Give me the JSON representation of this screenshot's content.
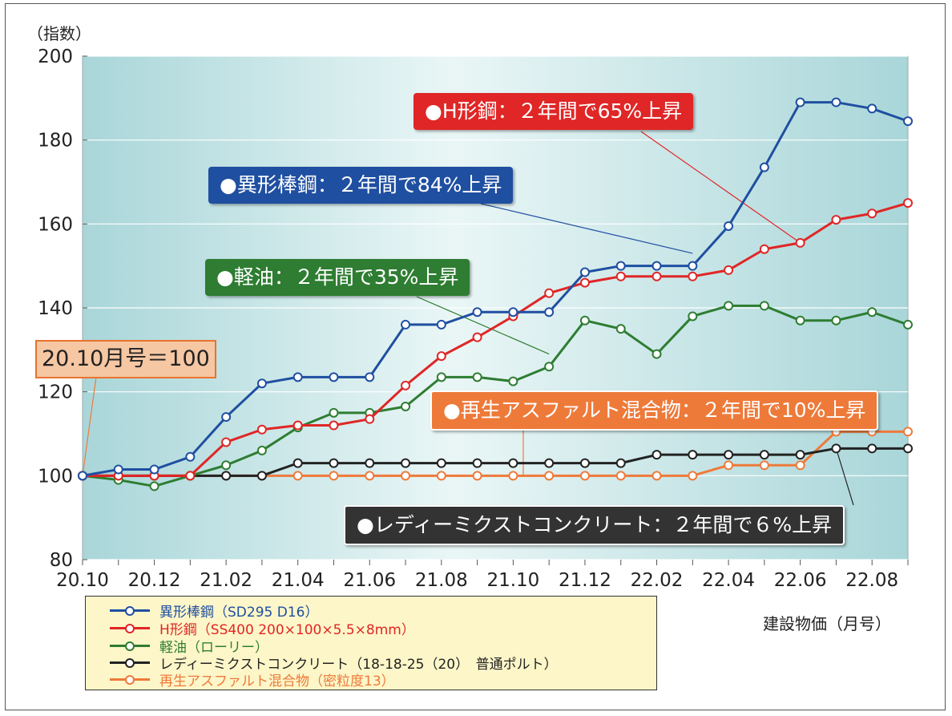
{
  "y_unit_label": "（指数）",
  "x_unit_label": "建設物価（月号）",
  "base_note": "20.10月号＝100",
  "colors": {
    "rebar": "#1f4fa1",
    "hbeam": "#e02626",
    "diesel": "#2e7d32",
    "concrete": "#222222",
    "asphalt": "#ee7a3a"
  },
  "callouts": {
    "hbeam": "●H形鋼：２年間で65%上昇",
    "rebar": "●異形棒鋼：２年間で84%上昇",
    "diesel": "●軽油：２年間で35%上昇",
    "asphalt": "●再生アスファルト混合物：２年間で10%上昇",
    "concrete": "●レディーミクストコンクリート：２年間で６%上昇"
  },
  "legend": [
    {
      "key": "rebar",
      "label": "異形棒鋼（SD295 D16）"
    },
    {
      "key": "hbeam",
      "label": "H形鋼（SS400 200×100×5.5×8mm）"
    },
    {
      "key": "diesel",
      "label": "軽油（ローリー）"
    },
    {
      "key": "concrete",
      "label": "レディーミクストコンクリート（18-18-25（20）　普通ポルト）"
    },
    {
      "key": "asphalt",
      "label": "再生アスファルト混合物（密粒度13）"
    }
  ],
  "chart_data": {
    "type": "line",
    "x": [
      "20.10",
      "20.11",
      "20.12",
      "21.01",
      "21.02",
      "21.03",
      "21.04",
      "21.05",
      "21.06",
      "21.07",
      "21.08",
      "21.09",
      "21.10",
      "21.11",
      "21.12",
      "22.01",
      "22.02",
      "22.03",
      "22.04",
      "22.05",
      "22.06",
      "22.07",
      "22.08",
      "22.09"
    ],
    "x_tick_labels": [
      "20.10",
      "20.12",
      "21.02",
      "21.04",
      "21.06",
      "21.08",
      "21.10",
      "21.12",
      "22.02",
      "22.04",
      "22.06",
      "22.08"
    ],
    "y_ticks": [
      80,
      100,
      120,
      140,
      160,
      180,
      200
    ],
    "ylim": [
      80,
      200
    ],
    "grid": true,
    "legend_position": "bottom-left",
    "series": [
      {
        "key": "rebar",
        "name": "異形棒鋼（SD295 D16）",
        "values": [
          100,
          101.5,
          101.5,
          104.5,
          114,
          122,
          123.5,
          123.5,
          123.5,
          136,
          136,
          139,
          139,
          139,
          148.5,
          150,
          150,
          150,
          159.5,
          173.5,
          189,
          189,
          187.5,
          184.5
        ]
      },
      {
        "key": "hbeam",
        "name": "H形鋼（SS400 200×100×5.5×8mm）",
        "values": [
          100,
          100,
          100,
          100,
          108,
          111,
          112,
          112,
          113.5,
          121.5,
          128.5,
          133,
          138,
          143.5,
          146,
          147.5,
          147.5,
          147.5,
          149,
          154,
          155.5,
          161,
          162.5,
          165
        ]
      },
      {
        "key": "diesel",
        "name": "軽油（ローリー）",
        "values": [
          100,
          99,
          97.5,
          100,
          102.5,
          106,
          111.5,
          115,
          115,
          116.5,
          123.5,
          123.5,
          122.5,
          126,
          137,
          135,
          129,
          138,
          140.5,
          140.5,
          137,
          137,
          139,
          136
        ]
      },
      {
        "key": "concrete",
        "name": "レディーミクストコンクリート（18-18-25（20）　普通ポルト）",
        "values": [
          100,
          100,
          100,
          100,
          100,
          100,
          103,
          103,
          103,
          103,
          103,
          103,
          103,
          103,
          103,
          103,
          105,
          105,
          105,
          105,
          105,
          106.5,
          106.5,
          106.5
        ]
      },
      {
        "key": "asphalt",
        "name": "再生アスファルト混合物（密粒度13）",
        "values": [
          100,
          100,
          100,
          100,
          100,
          100,
          100,
          100,
          100,
          100,
          100,
          100,
          100,
          100,
          100,
          100,
          100,
          100,
          102.5,
          102.5,
          102.5,
          110.5,
          110.5,
          110.5
        ]
      }
    ]
  }
}
